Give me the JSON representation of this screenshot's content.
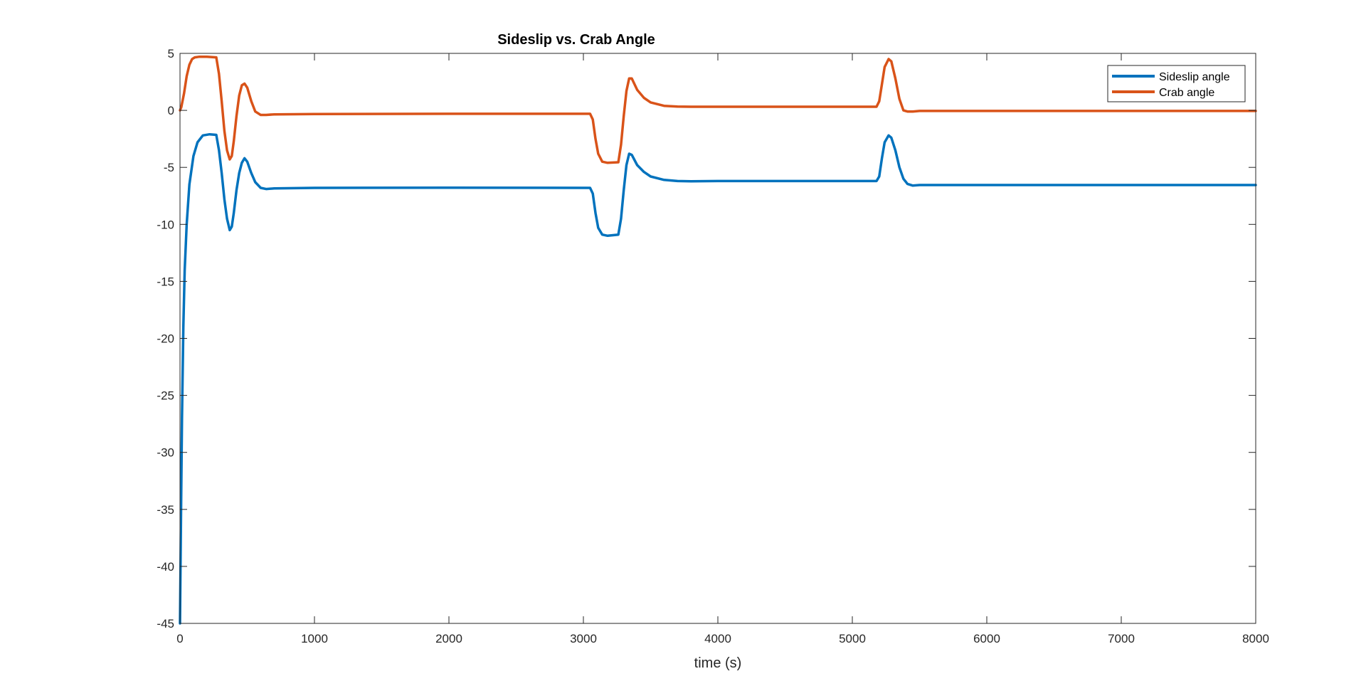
{
  "chart_data": {
    "type": "line",
    "title": "Sideslip vs. Crab Angle",
    "xlabel": "time (s)",
    "ylabel": "",
    "xlim": [
      0,
      8000
    ],
    "ylim": [
      -45,
      5
    ],
    "xticks": [
      0,
      1000,
      2000,
      3000,
      4000,
      5000,
      6000,
      7000,
      8000
    ],
    "yticks": [
      5,
      0,
      -5,
      -10,
      -15,
      -20,
      -25,
      -30,
      -35,
      -40,
      -45
    ],
    "xtick_labels": [
      "0",
      "1000",
      "2000",
      "3000",
      "4000",
      "5000",
      "6000",
      "7000",
      "8000"
    ],
    "ytick_labels": [
      "5",
      "0",
      "-5",
      "-10",
      "-15",
      "-20",
      "-25",
      "-30",
      "-35",
      "-40",
      "-45"
    ],
    "grid": false,
    "legend_position": "top-right",
    "series": [
      {
        "name": "Sideslip angle",
        "color": "#0072BD",
        "x": [
          0,
          8,
          15,
          25,
          35,
          50,
          70,
          100,
          130,
          170,
          220,
          270,
          290,
          310,
          330,
          350,
          370,
          385,
          400,
          420,
          440,
          460,
          480,
          500,
          530,
          560,
          600,
          640,
          700,
          1000,
          2000,
          3050,
          3070,
          3090,
          3110,
          3140,
          3180,
          3260,
          3280,
          3300,
          3320,
          3340,
          3360,
          3400,
          3450,
          3500,
          3600,
          3700,
          3800,
          4000,
          5000,
          5180,
          5200,
          5220,
          5240,
          5270,
          5290,
          5320,
          5350,
          5380,
          5410,
          5450,
          5500,
          6000,
          7000,
          8000
        ],
        "values": [
          -45,
          -35,
          -27,
          -19,
          -14,
          -10,
          -6.5,
          -4,
          -2.8,
          -2.2,
          -2.1,
          -2.15,
          -3.5,
          -5.5,
          -7.8,
          -9.5,
          -10.5,
          -10.2,
          -9,
          -7,
          -5.5,
          -4.6,
          -4.2,
          -4.5,
          -5.5,
          -6.3,
          -6.8,
          -6.9,
          -6.85,
          -6.8,
          -6.78,
          -6.8,
          -7.3,
          -9,
          -10.3,
          -10.9,
          -11,
          -10.9,
          -9.5,
          -7,
          -4.8,
          -3.8,
          -3.9,
          -4.8,
          -5.4,
          -5.8,
          -6.1,
          -6.2,
          -6.22,
          -6.2,
          -6.2,
          -6.2,
          -5.8,
          -4.2,
          -2.8,
          -2.2,
          -2.4,
          -3.5,
          -5,
          -6,
          -6.45,
          -6.6,
          -6.55,
          -6.55,
          -6.55,
          -6.55
        ]
      },
      {
        "name": "Crab angle",
        "color": "#D95319",
        "x": [
          0,
          10,
          30,
          50,
          70,
          90,
          110,
          140,
          200,
          270,
          290,
          310,
          330,
          350,
          370,
          385,
          400,
          420,
          440,
          460,
          480,
          500,
          530,
          560,
          600,
          640,
          700,
          1000,
          2000,
          3050,
          3070,
          3090,
          3110,
          3140,
          3180,
          3260,
          3280,
          3300,
          3320,
          3340,
          3360,
          3400,
          3450,
          3500,
          3600,
          3700,
          3800,
          4000,
          5000,
          5180,
          5200,
          5220,
          5240,
          5270,
          5290,
          5320,
          5350,
          5380,
          5410,
          5450,
          5500,
          6000,
          7000,
          8000
        ],
        "values": [
          0,
          0.3,
          1.5,
          3,
          4,
          4.5,
          4.65,
          4.7,
          4.7,
          4.65,
          3.2,
          0.8,
          -1.8,
          -3.5,
          -4.3,
          -4,
          -2.7,
          -0.5,
          1.3,
          2.2,
          2.35,
          2,
          0.8,
          -0.1,
          -0.4,
          -0.4,
          -0.35,
          -0.32,
          -0.3,
          -0.3,
          -0.8,
          -2.5,
          -3.8,
          -4.5,
          -4.6,
          -4.55,
          -3,
          -0.5,
          1.7,
          2.8,
          2.8,
          1.8,
          1.1,
          0.7,
          0.4,
          0.33,
          0.32,
          0.32,
          0.32,
          0.32,
          0.8,
          2.3,
          3.8,
          4.5,
          4.3,
          2.8,
          1,
          0,
          -0.1,
          -0.1,
          -0.05,
          -0.05,
          -0.05,
          -0.05
        ]
      }
    ]
  }
}
